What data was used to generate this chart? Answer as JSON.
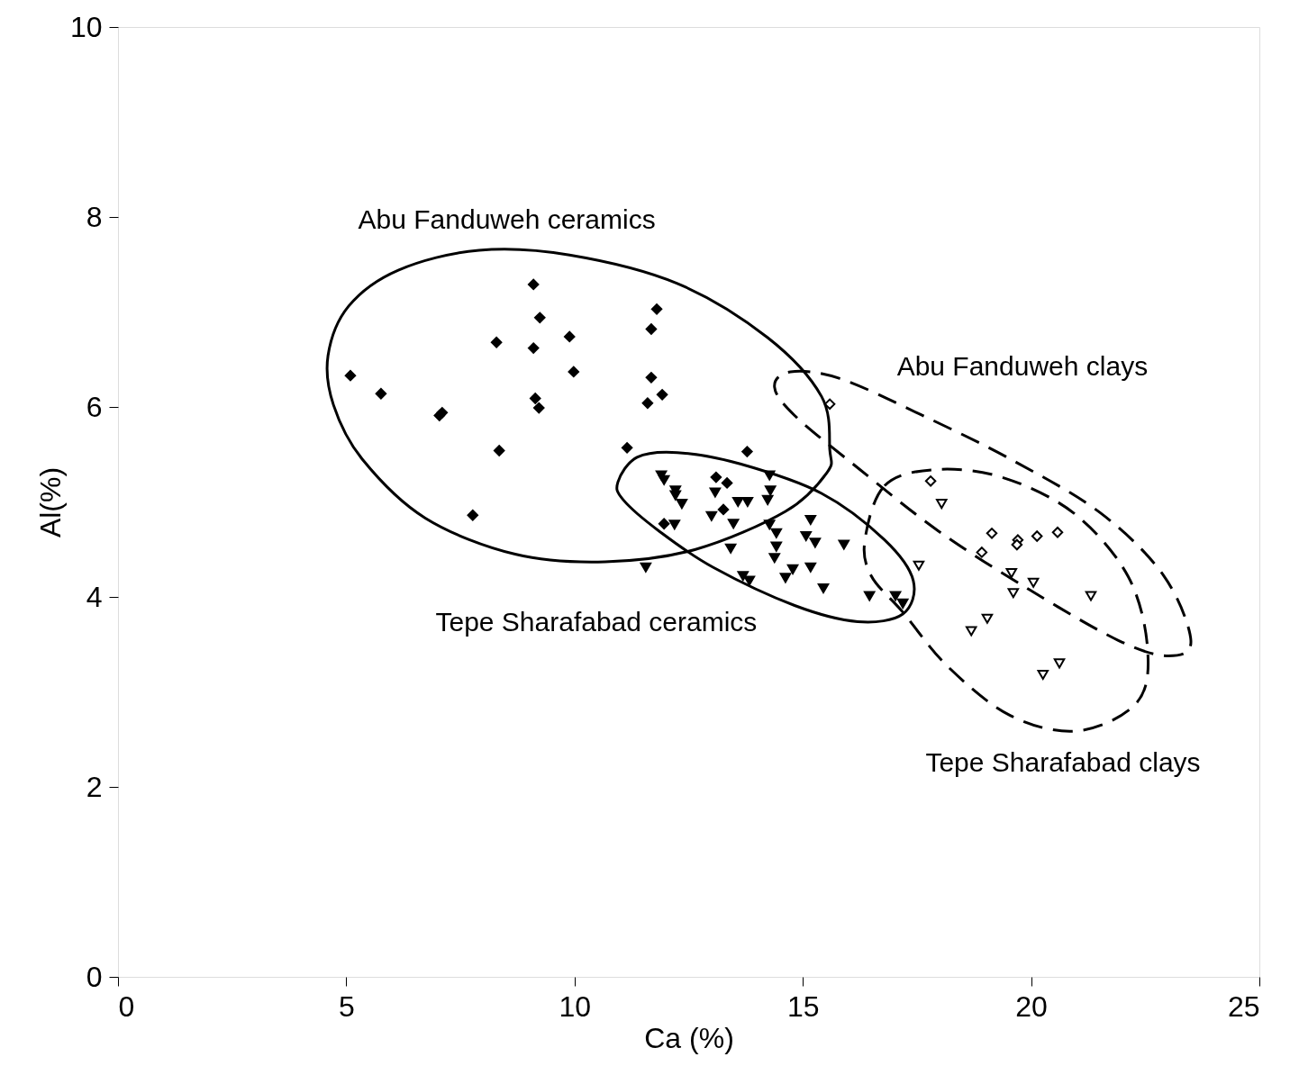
{
  "chart_data": {
    "type": "scatter",
    "xlabel": "Ca (%)",
    "ylabel": "Al(%)",
    "xlim": [
      0,
      25
    ],
    "xticks": [
      0,
      5,
      10,
      15,
      20,
      25
    ],
    "ylim": [
      0,
      10
    ],
    "yticks": [
      0,
      2,
      4,
      6,
      8,
      10
    ],
    "grid": false,
    "series": [
      {
        "marker": "diamond",
        "color": "#000000",
        "x": [
          5.09,
          5.76,
          7.04,
          7.1,
          7.77,
          8.29,
          8.35,
          9.1,
          9.1,
          9.14,
          9.22,
          9.24,
          9.89,
          9.98,
          11.15,
          11.6,
          11.68,
          11.8,
          11.68,
          11.92,
          11.96,
          13.78,
          13.1,
          13.34,
          13.26
        ],
        "values": [
          6.33,
          6.14,
          5.91,
          5.94,
          4.86,
          6.68,
          5.54,
          7.29,
          6.62,
          6.09,
          5.99,
          6.94,
          6.74,
          6.37,
          5.57,
          6.04,
          6.82,
          7.03,
          6.31,
          6.13,
          4.77,
          5.53,
          5.26,
          5.2,
          4.92
        ]
      },
      {
        "marker": "triangle-down",
        "color": "#000000",
        "x": [
          11.9,
          11.96,
          12.21,
          12.21,
          12.35,
          12.19,
          11.56,
          13.08,
          13.0,
          13.58,
          13.79,
          13.48,
          14.27,
          14.29,
          14.23,
          14.27,
          14.42,
          15.17,
          15.07,
          15.27,
          15.9,
          13.42,
          14.42,
          14.38,
          15.17,
          14.78,
          14.62,
          13.69,
          13.83,
          15.45,
          16.46,
          17.03,
          17.19
        ],
        "values": [
          5.28,
          5.23,
          5.12,
          5.07,
          4.98,
          4.76,
          4.31,
          5.1,
          4.85,
          5.0,
          5.0,
          4.77,
          5.28,
          5.12,
          5.02,
          4.76,
          4.67,
          4.81,
          4.64,
          4.57,
          4.55,
          4.51,
          4.53,
          4.41,
          4.31,
          4.29,
          4.2,
          4.22,
          4.17,
          4.09,
          4.01,
          4.01,
          3.93
        ]
      },
      {
        "marker": "diamond",
        "color": "#ffffff",
        "x": [
          15.59,
          17.8,
          19.14,
          18.92,
          19.71,
          19.69,
          20.13,
          20.58
        ],
        "values": [
          6.03,
          5.22,
          4.67,
          4.47,
          4.6,
          4.55,
          4.64,
          4.68
        ]
      },
      {
        "marker": "triangle-down",
        "color": "#ffffff",
        "x": [
          18.04,
          17.54,
          19.57,
          20.05,
          19.61,
          21.31,
          19.04,
          18.69,
          20.62,
          20.26
        ],
        "values": [
          4.98,
          4.33,
          4.25,
          4.15,
          4.04,
          4.01,
          3.77,
          3.64,
          3.3,
          3.18
        ]
      }
    ],
    "annotations": [
      "Abu Fanduweh ceramics",
      "Abu Fanduweh clays",
      "Tepe Sharafabad ceramics",
      "Tepe Sharafabad clays"
    ]
  }
}
